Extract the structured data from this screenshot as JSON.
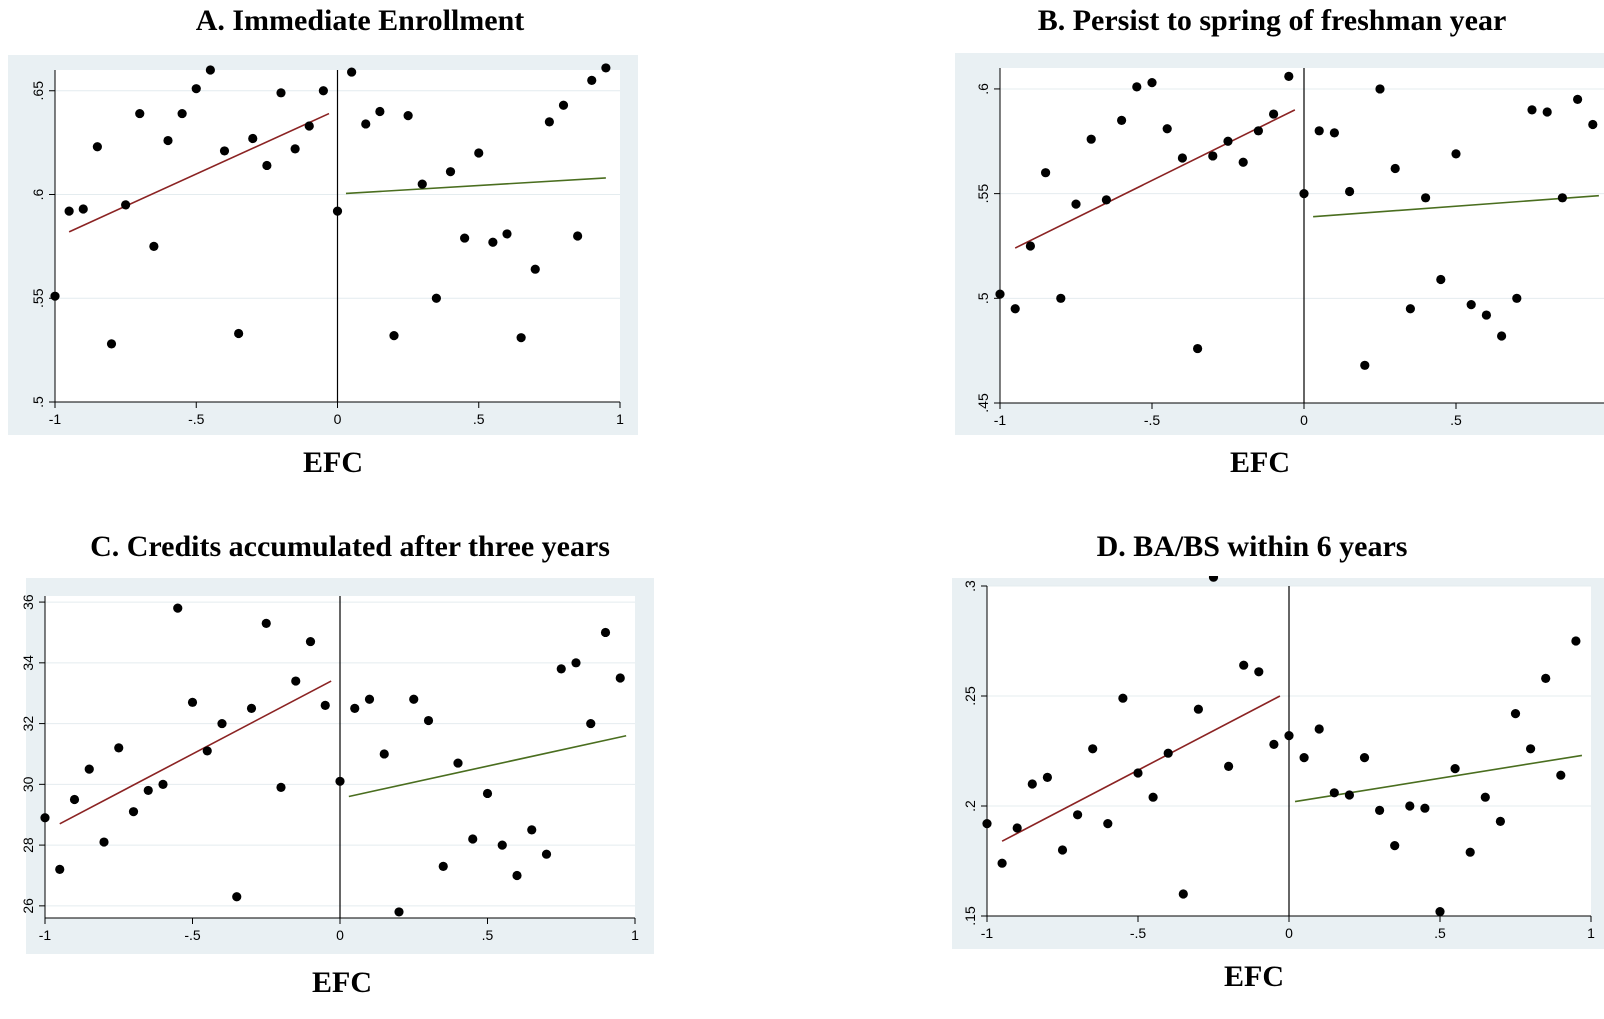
{
  "chart_data": [
    {
      "type": "scatter",
      "title": "A.  Immediate Enrollment",
      "xlabel": "EFC",
      "ylabel": "",
      "xlim": [
        -1,
        1
      ],
      "ylim": [
        0.5,
        0.66
      ],
      "xticks": [
        "-1",
        "-.5",
        "0",
        ".5",
        "1"
      ],
      "xtick_values": [
        -1,
        -0.5,
        0,
        0.5,
        1
      ],
      "yticks": [
        ".5",
        ".55",
        ".6",
        ".65"
      ],
      "ytick_values": [
        0.5,
        0.55,
        0.6,
        0.65
      ],
      "grid": true,
      "cutoff": 0,
      "points": [
        [
          -1.0,
          0.551
        ],
        [
          -0.95,
          0.592
        ],
        [
          -0.9,
          0.593
        ],
        [
          -0.85,
          0.623
        ],
        [
          -0.8,
          0.528
        ],
        [
          -0.75,
          0.595
        ],
        [
          -0.7,
          0.639
        ],
        [
          -0.65,
          0.575
        ],
        [
          -0.6,
          0.626
        ],
        [
          -0.55,
          0.639
        ],
        [
          -0.5,
          0.651
        ],
        [
          -0.45,
          0.66
        ],
        [
          -0.4,
          0.621
        ],
        [
          -0.35,
          0.533
        ],
        [
          -0.3,
          0.627
        ],
        [
          -0.25,
          0.614
        ],
        [
          -0.2,
          0.649
        ],
        [
          -0.15,
          0.622
        ],
        [
          -0.1,
          0.633
        ],
        [
          -0.05,
          0.65
        ],
        [
          0.0,
          0.592
        ],
        [
          0.05,
          0.659
        ],
        [
          0.1,
          0.634
        ],
        [
          0.15,
          0.64
        ],
        [
          0.2,
          0.532
        ],
        [
          0.25,
          0.638
        ],
        [
          0.3,
          0.605
        ],
        [
          0.35,
          0.55
        ],
        [
          0.4,
          0.611
        ],
        [
          0.45,
          0.579
        ],
        [
          0.5,
          0.62
        ],
        [
          0.55,
          0.577
        ],
        [
          0.6,
          0.581
        ],
        [
          0.65,
          0.531
        ],
        [
          0.7,
          0.564
        ],
        [
          0.75,
          0.635
        ],
        [
          0.8,
          0.643
        ],
        [
          0.85,
          0.58
        ],
        [
          0.9,
          0.655
        ],
        [
          0.95,
          0.661
        ]
      ],
      "fit_left": {
        "x": [
          -0.95,
          -0.03
        ],
        "y": [
          0.582,
          0.639
        ],
        "color": "#8b2323"
      },
      "fit_right": {
        "x": [
          0.03,
          0.95
        ],
        "y": [
          0.6005,
          0.608
        ],
        "color": "#4a6e1f"
      }
    },
    {
      "type": "scatter",
      "title": "B. Persist to spring of freshman year",
      "xlabel": "EFC",
      "ylabel": "",
      "xlim": [
        -1,
        1
      ],
      "ylim": [
        0.45,
        0.61
      ],
      "xticks": [
        "-1",
        "-.5",
        "0",
        ".5",
        "1"
      ],
      "xtick_values": [
        -1,
        -0.5,
        0,
        0.5,
        1
      ],
      "yticks": [
        ".45",
        ".5",
        ".55",
        ".6"
      ],
      "ytick_values": [
        0.45,
        0.5,
        0.55,
        0.6
      ],
      "grid": true,
      "cutoff": 0,
      "points": [
        [
          -1.0,
          0.502
        ],
        [
          -0.95,
          0.495
        ],
        [
          -0.9,
          0.525
        ],
        [
          -0.85,
          0.56
        ],
        [
          -0.8,
          0.5
        ],
        [
          -0.75,
          0.545
        ],
        [
          -0.7,
          0.576
        ],
        [
          -0.65,
          0.547
        ],
        [
          -0.6,
          0.585
        ],
        [
          -0.55,
          0.601
        ],
        [
          -0.5,
          0.603
        ],
        [
          -0.45,
          0.581
        ],
        [
          -0.4,
          0.567
        ],
        [
          -0.35,
          0.476
        ],
        [
          -0.3,
          0.568
        ],
        [
          -0.25,
          0.575
        ],
        [
          -0.2,
          0.565
        ],
        [
          -0.15,
          0.58
        ],
        [
          -0.1,
          0.588
        ],
        [
          -0.05,
          0.606
        ],
        [
          0.0,
          0.55
        ],
        [
          0.05,
          0.58
        ],
        [
          0.1,
          0.579
        ],
        [
          0.15,
          0.551
        ],
        [
          0.2,
          0.468
        ],
        [
          0.25,
          0.6
        ],
        [
          0.3,
          0.562
        ],
        [
          0.35,
          0.495
        ],
        [
          0.4,
          0.548
        ],
        [
          0.45,
          0.509
        ],
        [
          0.5,
          0.569
        ],
        [
          0.55,
          0.497
        ],
        [
          0.6,
          0.492
        ],
        [
          0.65,
          0.482
        ],
        [
          0.7,
          0.5
        ],
        [
          0.75,
          0.59
        ],
        [
          0.8,
          0.589
        ],
        [
          0.85,
          0.548
        ],
        [
          0.9,
          0.595
        ],
        [
          0.95,
          0.583
        ]
      ],
      "fit_left": {
        "x": [
          -0.95,
          -0.03
        ],
        "y": [
          0.524,
          0.59
        ],
        "color": "#8b2323"
      },
      "fit_right": {
        "x": [
          0.03,
          0.97
        ],
        "y": [
          0.539,
          0.549
        ],
        "color": "#4a6e1f"
      }
    },
    {
      "type": "scatter",
      "title": "C. Credits accumulated after three years",
      "xlabel": "EFC",
      "ylabel": "",
      "xlim": [
        -1,
        1
      ],
      "ylim": [
        25.6,
        36.2
      ],
      "xticks": [
        "-1",
        "-.5",
        "0",
        ".5",
        "1"
      ],
      "xtick_values": [
        -1,
        -0.5,
        0,
        0.5,
        1
      ],
      "yticks": [
        "26",
        "28",
        "30",
        "32",
        "34",
        "36"
      ],
      "ytick_values": [
        26,
        28,
        30,
        32,
        34,
        36
      ],
      "grid": true,
      "cutoff": 0,
      "points": [
        [
          -1.0,
          28.9
        ],
        [
          -0.95,
          27.2
        ],
        [
          -0.9,
          29.5
        ],
        [
          -0.85,
          30.5
        ],
        [
          -0.8,
          28.1
        ],
        [
          -0.75,
          31.2
        ],
        [
          -0.7,
          29.1
        ],
        [
          -0.65,
          29.8
        ],
        [
          -0.6,
          30.0
        ],
        [
          -0.55,
          35.8
        ],
        [
          -0.5,
          32.7
        ],
        [
          -0.45,
          31.1
        ],
        [
          -0.4,
          32.0
        ],
        [
          -0.35,
          26.3
        ],
        [
          -0.3,
          32.5
        ],
        [
          -0.25,
          35.3
        ],
        [
          -0.2,
          29.9
        ],
        [
          -0.15,
          33.4
        ],
        [
          -0.1,
          34.7
        ],
        [
          -0.05,
          32.6
        ],
        [
          0.0,
          30.1
        ],
        [
          0.05,
          32.5
        ],
        [
          0.1,
          32.8
        ],
        [
          0.15,
          31.0
        ],
        [
          0.2,
          25.8
        ],
        [
          0.25,
          32.8
        ],
        [
          0.3,
          32.1
        ],
        [
          0.35,
          27.3
        ],
        [
          0.4,
          30.7
        ],
        [
          0.45,
          28.2
        ],
        [
          0.5,
          29.7
        ],
        [
          0.55,
          28.0
        ],
        [
          0.6,
          27.0
        ],
        [
          0.65,
          28.5
        ],
        [
          0.7,
          27.7
        ],
        [
          0.75,
          33.8
        ],
        [
          0.8,
          34.0
        ],
        [
          0.85,
          32.0
        ],
        [
          0.9,
          35.0
        ],
        [
          0.95,
          33.5
        ]
      ],
      "fit_left": {
        "x": [
          -0.95,
          -0.03
        ],
        "y": [
          28.7,
          33.4
        ],
        "color": "#8b2323"
      },
      "fit_right": {
        "x": [
          0.03,
          0.97
        ],
        "y": [
          29.6,
          31.6
        ],
        "color": "#4a6e1f"
      }
    },
    {
      "type": "scatter",
      "title": "D. BA/BS within 6 years",
      "xlabel": "EFC",
      "ylabel": "",
      "xlim": [
        -1,
        1
      ],
      "ylim": [
        0.15,
        0.3
      ],
      "xticks": [
        "-1",
        "-.5",
        "0",
        ".5",
        "1"
      ],
      "xtick_values": [
        -1,
        -0.5,
        0,
        0.5,
        1
      ],
      "yticks": [
        ".15",
        ".2",
        ".25",
        ".3"
      ],
      "ytick_values": [
        0.15,
        0.2,
        0.25,
        0.3
      ],
      "grid": true,
      "cutoff": 0,
      "points": [
        [
          -1.0,
          0.192
        ],
        [
          -0.95,
          0.174
        ],
        [
          -0.9,
          0.19
        ],
        [
          -0.85,
          0.21
        ],
        [
          -0.8,
          0.213
        ],
        [
          -0.75,
          0.18
        ],
        [
          -0.7,
          0.196
        ],
        [
          -0.65,
          0.226
        ],
        [
          -0.6,
          0.192
        ],
        [
          -0.55,
          0.249
        ],
        [
          -0.5,
          0.215
        ],
        [
          -0.45,
          0.204
        ],
        [
          -0.4,
          0.224
        ],
        [
          -0.35,
          0.16
        ],
        [
          -0.3,
          0.244
        ],
        [
          -0.25,
          0.304
        ],
        [
          -0.2,
          0.218
        ],
        [
          -0.15,
          0.264
        ],
        [
          -0.1,
          0.261
        ],
        [
          -0.05,
          0.228
        ],
        [
          0.0,
          0.232
        ],
        [
          0.05,
          0.222
        ],
        [
          0.1,
          0.235
        ],
        [
          0.15,
          0.206
        ],
        [
          0.2,
          0.205
        ],
        [
          0.25,
          0.222
        ],
        [
          0.3,
          0.198
        ],
        [
          0.35,
          0.182
        ],
        [
          0.4,
          0.2
        ],
        [
          0.45,
          0.199
        ],
        [
          0.5,
          0.152
        ],
        [
          0.55,
          0.217
        ],
        [
          0.6,
          0.179
        ],
        [
          0.65,
          0.204
        ],
        [
          0.7,
          0.193
        ],
        [
          0.75,
          0.242
        ],
        [
          0.8,
          0.226
        ],
        [
          0.85,
          0.258
        ],
        [
          0.9,
          0.214
        ],
        [
          0.95,
          0.275
        ]
      ],
      "fit_left": {
        "x": [
          -0.95,
          -0.03
        ],
        "y": [
          0.184,
          0.25
        ],
        "color": "#8b2323"
      },
      "fit_right": {
        "x": [
          0.02,
          0.97
        ],
        "y": [
          0.202,
          0.223
        ],
        "color": "#4a6e1f"
      }
    }
  ]
}
